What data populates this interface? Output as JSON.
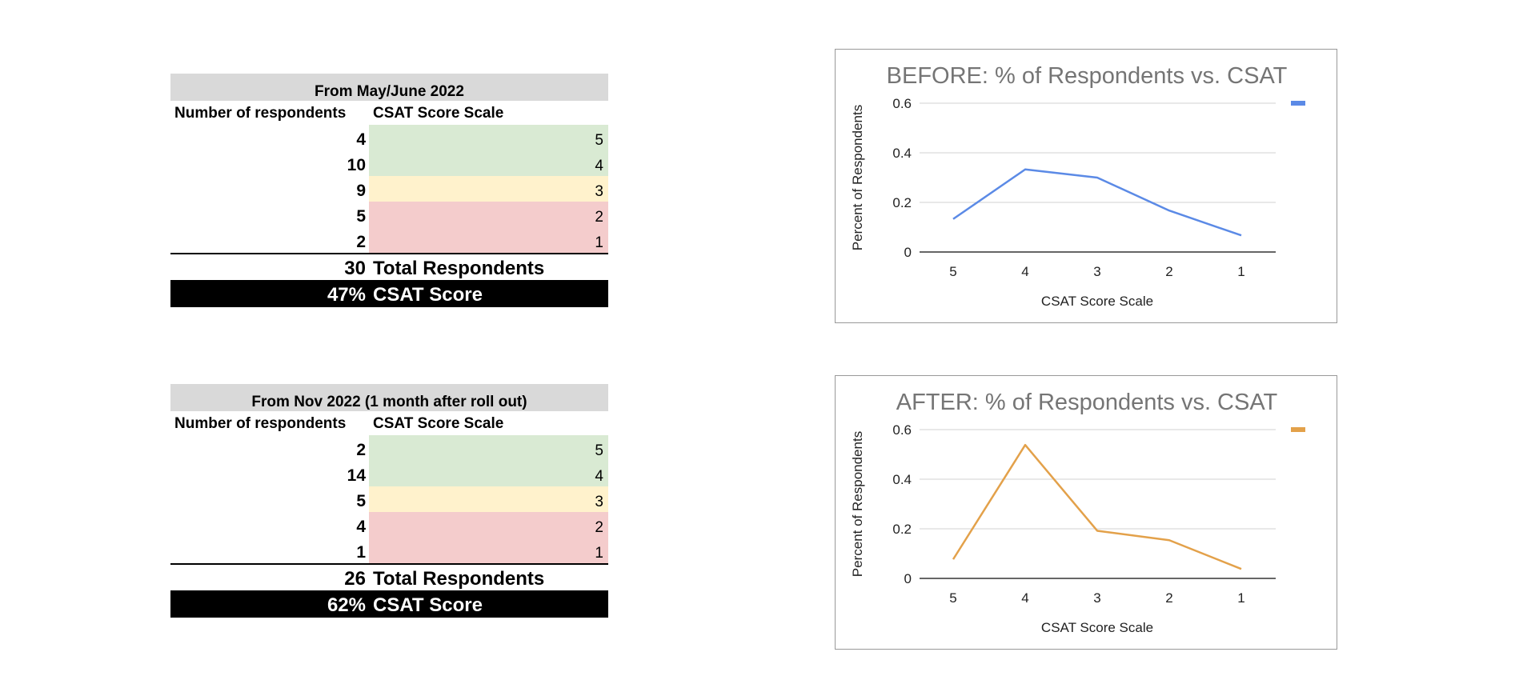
{
  "tables": [
    {
      "header": "From May/June 2022",
      "col_respondents": "Number of respondents",
      "col_scale": "CSAT Score Scale",
      "rows": [
        {
          "count": "4",
          "score": "5",
          "pct": "13.3%"
        },
        {
          "count": "10",
          "score": "4",
          "pct": "33.3%"
        },
        {
          "count": "9",
          "score": "3",
          "pct": "30.0%"
        },
        {
          "count": "5",
          "score": "2",
          "pct": "16.7%"
        },
        {
          "count": "2",
          "score": "1",
          "pct": "6.7%"
        }
      ],
      "total_value": "30",
      "total_label": "Total Respondents",
      "csat_value": "47%",
      "csat_label": "CSAT Score"
    },
    {
      "header": "From Nov 2022 (1 month after roll out)",
      "col_respondents": "Number of respondents",
      "col_scale": "CSAT Score Scale",
      "rows": [
        {
          "count": "2",
          "score": "5",
          "pct": "7.7%"
        },
        {
          "count": "14",
          "score": "4",
          "pct": "53.8%"
        },
        {
          "count": "5",
          "score": "3",
          "pct": "19.2%"
        },
        {
          "count": "4",
          "score": "2",
          "pct": "15.4%"
        },
        {
          "count": "1",
          "score": "1",
          "pct": "3.8%"
        }
      ],
      "total_value": "26",
      "total_label": "Total Respondents",
      "csat_value": "62%",
      "csat_label": "CSAT Score"
    }
  ],
  "colors": {
    "header_bg": "#d9d9d9",
    "green": "#d9ead3",
    "yellow": "#fff2cc",
    "red": "#f4cccc",
    "before_line": "#5b8ae6",
    "after_line": "#e3a14a"
  },
  "chart_data": [
    {
      "type": "line",
      "title": "BEFORE: % of Respondents vs. CSAT",
      "xlabel": "CSAT Score Scale",
      "ylabel": "Percent of Respondents",
      "categories": [
        "5",
        "4",
        "3",
        "2",
        "1"
      ],
      "series": [
        {
          "values": [
            0.133,
            0.333,
            0.3,
            0.167,
            0.067
          ],
          "color": "#5b8ae6"
        }
      ],
      "ylim": [
        0,
        0.6
      ],
      "yticks": [
        "0",
        "0.2",
        "0.4",
        "0.6"
      ],
      "grid": true,
      "legend": "top-right"
    },
    {
      "type": "line",
      "title": "AFTER: % of Respondents vs. CSAT",
      "xlabel": "CSAT Score Scale",
      "ylabel": "Percent of Respondents",
      "categories": [
        "5",
        "4",
        "3",
        "2",
        "1"
      ],
      "series": [
        {
          "values": [
            0.077,
            0.538,
            0.192,
            0.154,
            0.038
          ],
          "color": "#e3a14a"
        }
      ],
      "ylim": [
        0,
        0.6
      ],
      "yticks": [
        "0",
        "0.2",
        "0.4",
        "0.6"
      ],
      "grid": true,
      "legend": "top-right"
    }
  ]
}
